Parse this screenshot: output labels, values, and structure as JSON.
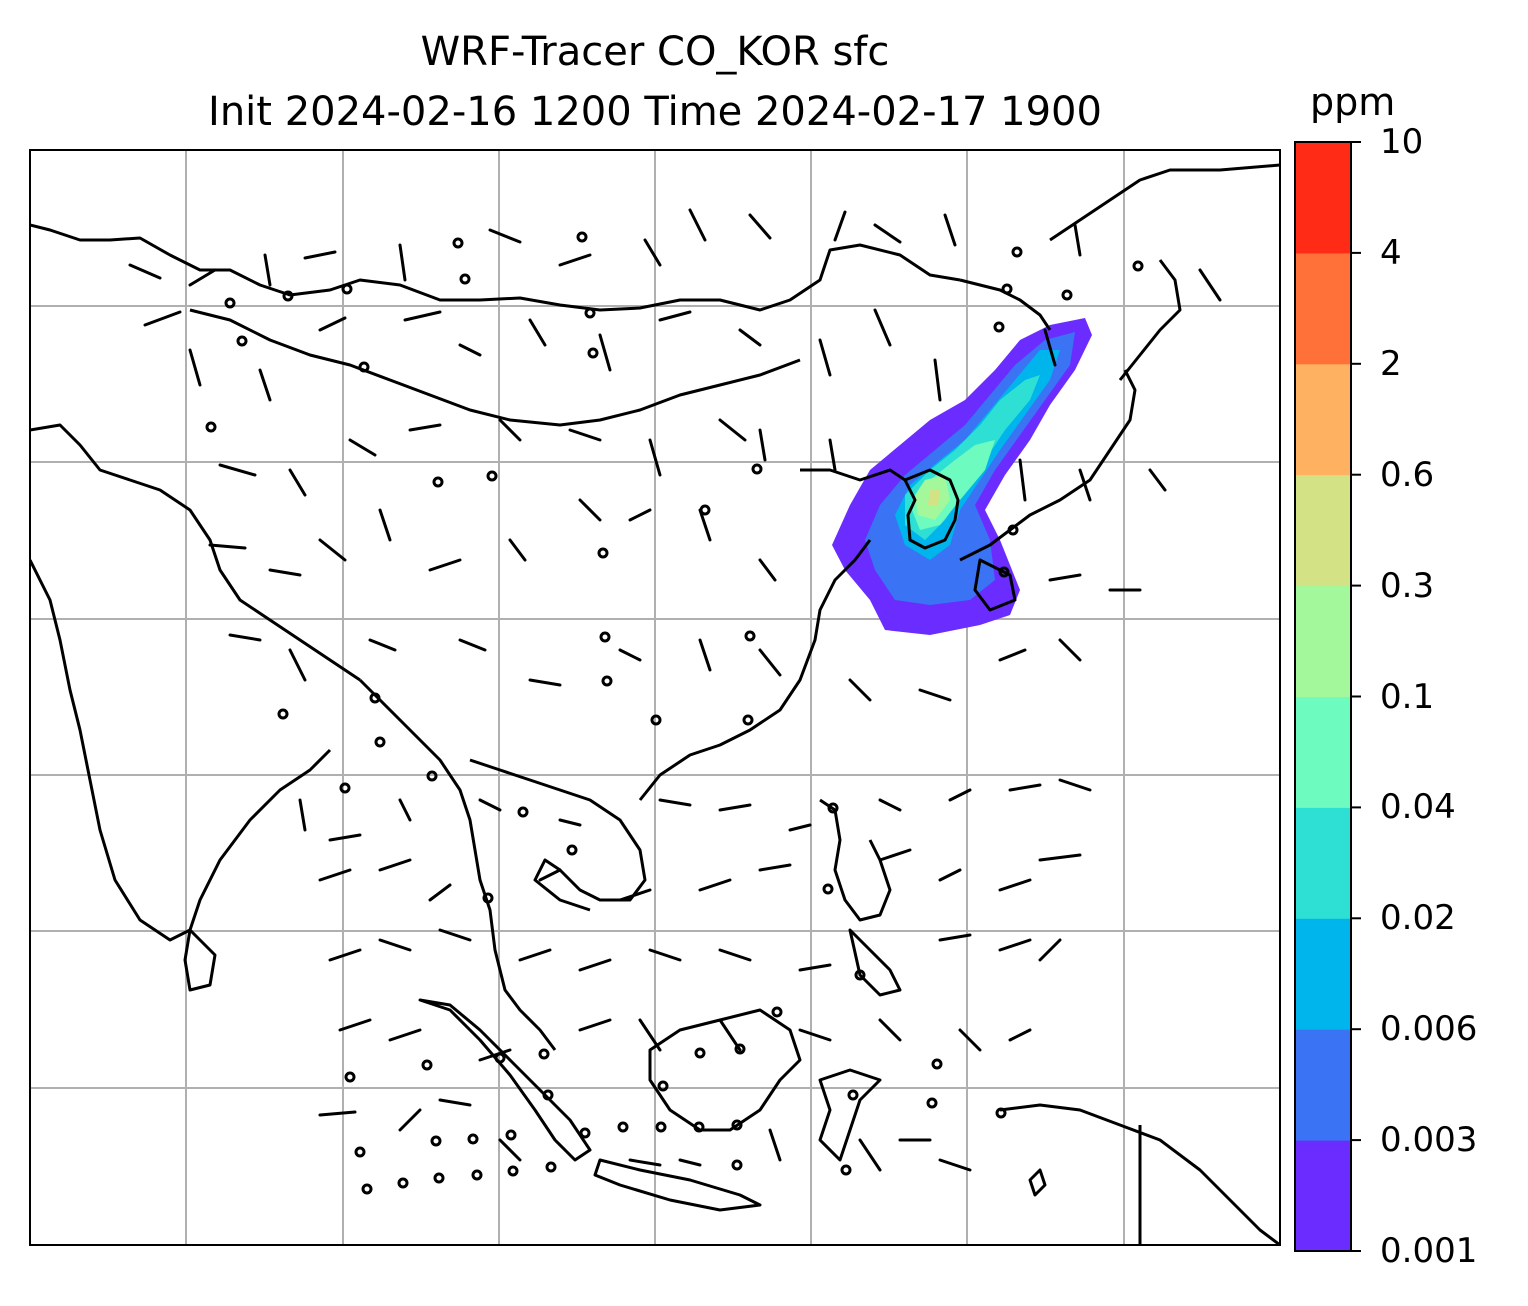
{
  "title_line1": "WRF-Tracer CO_KOR sfc",
  "title_line2": "Init 2024-02-16 1200 Time 2024-02-17 1900",
  "colorbar": {
    "unit": "ppm",
    "levels": [
      "0.001",
      "0.003",
      "0.006",
      "0.02",
      "0.04",
      "0.1",
      "0.3",
      "0.6",
      "2",
      "4",
      "10"
    ],
    "colors": [
      "#6a2cff",
      "#3b73f5",
      "#00b4ec",
      "#2ee0d4",
      "#6dfbbf",
      "#a3f89c",
      "#d4e286",
      "#feb160",
      "#ff7138",
      "#ff2b16"
    ]
  },
  "map": {
    "gridlines": true,
    "coastline_color": "#000000",
    "grid_color": "#b0b0b0"
  }
}
